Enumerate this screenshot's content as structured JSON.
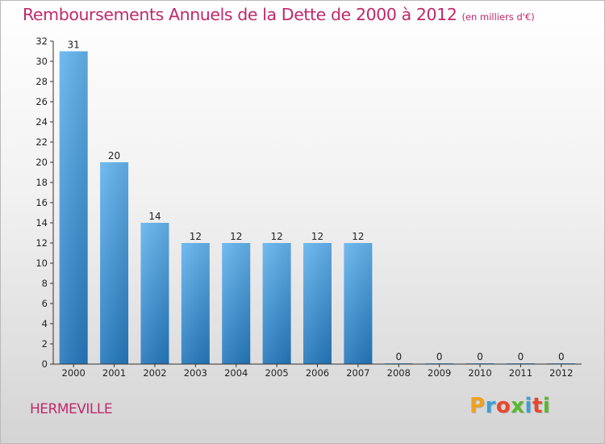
{
  "header": {
    "title": "Remboursements Annuels de la Dette de 2000 à 2012",
    "subtitle": "(en milliers d'€)"
  },
  "footer": {
    "commune": "HERMEVILLE",
    "brand": "Proxiti",
    "brand_colors": [
      "#f0a020",
      "#3aa0d8",
      "#e8462a",
      "#5ab82e",
      "#3aa0d8",
      "#e8462a",
      "#5ab82e"
    ]
  },
  "colors": {
    "title": "#c0286b",
    "bar_top": "#64b4ee",
    "bar_bottom": "#2478bc",
    "axis": "#333333",
    "grid": "#d0d0d0"
  },
  "chart_data": {
    "type": "bar",
    "categories": [
      "2000",
      "2001",
      "2002",
      "2003",
      "2004",
      "2005",
      "2006",
      "2007",
      "2008",
      "2009",
      "2010",
      "2011",
      "2012"
    ],
    "values": [
      31,
      20,
      14,
      12,
      12,
      12,
      12,
      12,
      0,
      0,
      0,
      0,
      0
    ],
    "ylim": [
      0,
      32
    ],
    "yticks": [
      0,
      2,
      4,
      6,
      8,
      10,
      12,
      14,
      16,
      18,
      20,
      22,
      24,
      26,
      28,
      30,
      32
    ],
    "data_labels": true,
    "grid": false,
    "legend": "none"
  }
}
